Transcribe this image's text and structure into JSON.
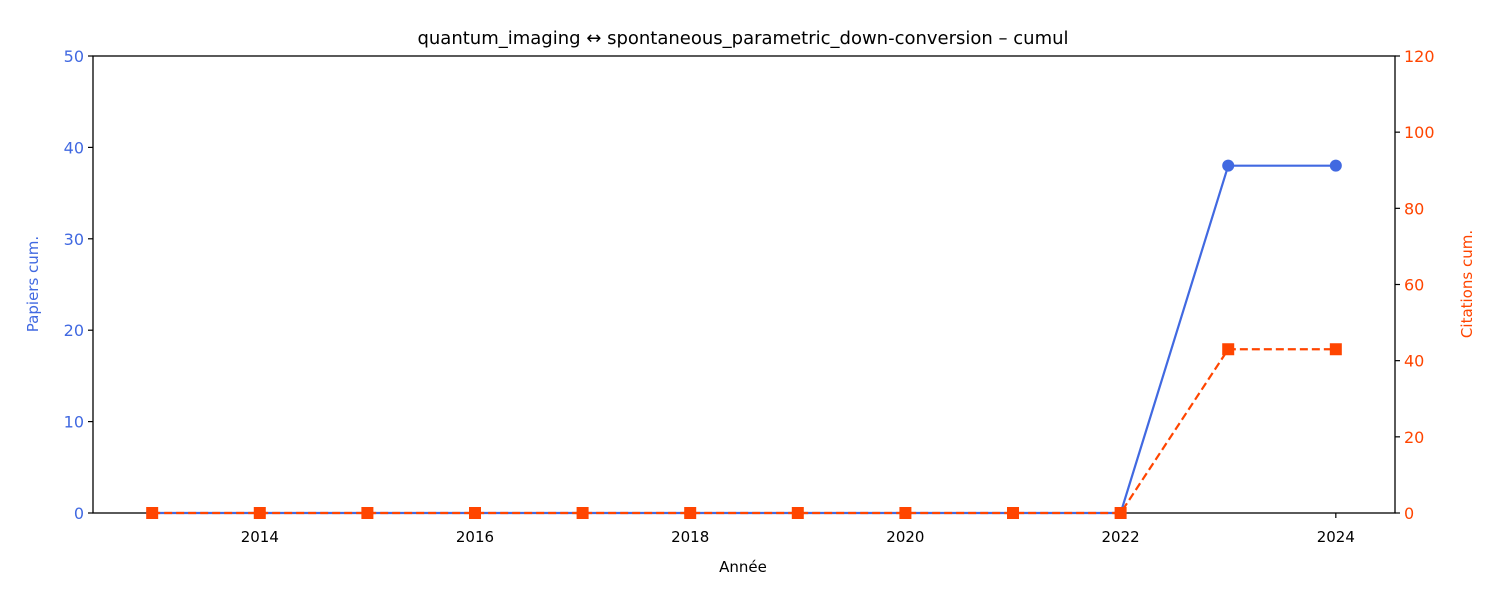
{
  "colors": {
    "papers": "#4169e1",
    "citations": "#ff4500",
    "axis": "#000000"
  },
  "chart_data": {
    "type": "line",
    "title": "quantum_imaging  ↔  spontaneous_parametric_down-conversion  –  cumul",
    "xlabel": "Année",
    "ylabel_left": "Papiers cum.",
    "ylabel_right": "Citations cum.",
    "x": [
      2013,
      2014,
      2015,
      2016,
      2017,
      2018,
      2019,
      2020,
      2021,
      2022,
      2023,
      2024
    ],
    "xlim": [
      2012.45,
      2024.55
    ],
    "xticks": [
      "2014",
      "2016",
      "2018",
      "2020",
      "2022",
      "2024"
    ],
    "ylim_left": [
      0,
      50
    ],
    "yticks_left": [
      "0",
      "10",
      "20",
      "30",
      "40",
      "50"
    ],
    "ylim_right": [
      0,
      120
    ],
    "yticks_right": [
      "0",
      "20",
      "40",
      "60",
      "80",
      "100",
      "120"
    ],
    "grid": false,
    "series": [
      {
        "axis": "left",
        "marker": "circle",
        "line_style": "solid",
        "values": [
          0,
          0,
          0,
          0,
          0,
          0,
          0,
          0,
          0,
          0,
          38,
          38
        ]
      },
      {
        "axis": "right",
        "marker": "square",
        "line_style": "dashed",
        "values": [
          0,
          0,
          0,
          0,
          0,
          0,
          0,
          0,
          0,
          0,
          43,
          43
        ]
      }
    ]
  }
}
